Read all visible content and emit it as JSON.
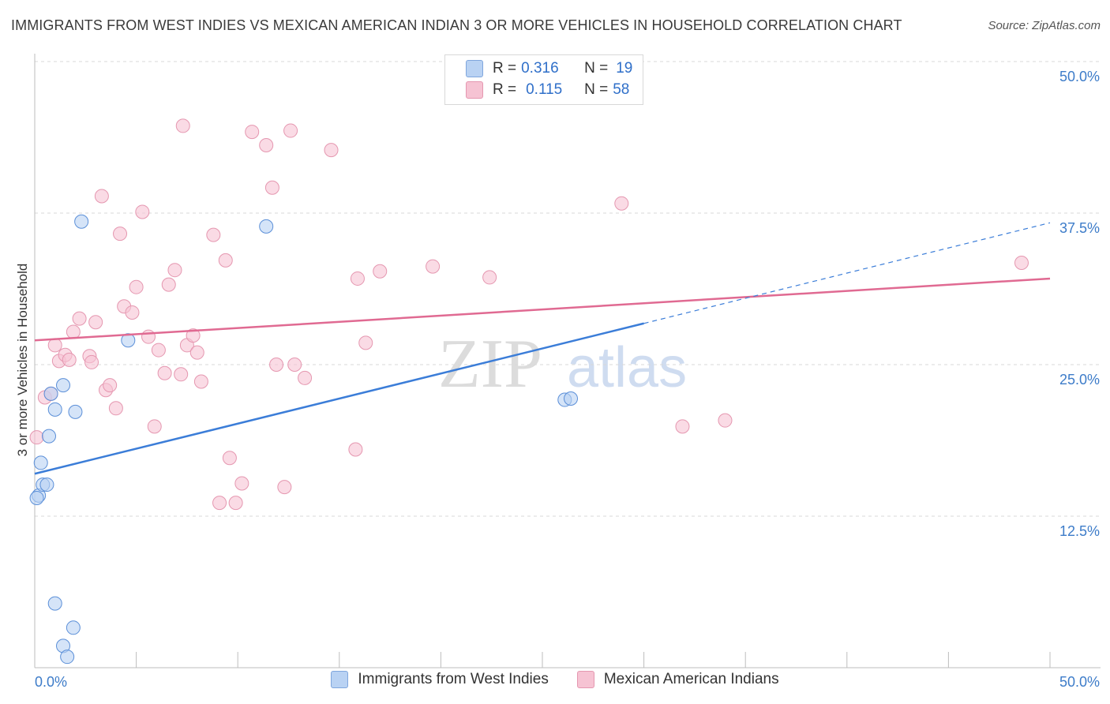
{
  "title": "IMMIGRANTS FROM WEST INDIES VS MEXICAN AMERICAN INDIAN 3 OR MORE VEHICLES IN HOUSEHOLD CORRELATION CHART",
  "source": "Source: ZipAtlas.com",
  "watermark": {
    "zip": "ZIP",
    "atlas": "atlas"
  },
  "colors": {
    "blue": "#3b7dd8",
    "blue_fill": "#b9d2f3",
    "pink": "#e06a92",
    "pink_fill": "#f6c3d3",
    "tick_label": "#3d7cc9"
  },
  "stats": [
    {
      "r_label": "R = ",
      "r_value": "0.316",
      "n_label": "N = ",
      "n_value": "19"
    },
    {
      "r_label": "R = ",
      "r_value": "0.115",
      "n_label": "N = ",
      "n_value": "58"
    }
  ],
  "legend": [
    "Immigrants from West Indies",
    "Mexican American Indians"
  ],
  "chart_data": {
    "type": "scatter",
    "xlabel": "",
    "ylabel": "3 or more Vehicles in Household",
    "xlim": [
      0,
      50
    ],
    "ylim": [
      0,
      50
    ],
    "x_tick_labels": [
      "0.0%",
      "50.0%"
    ],
    "y_ticks": [
      12.5,
      25.0,
      37.5,
      50.0
    ],
    "y_tick_labels": [
      "12.5%",
      "25.0%",
      "37.5%",
      "50.0%"
    ],
    "grid": true,
    "series": [
      {
        "name": "Immigrants from West Indies",
        "points": [
          [
            0.2,
            14.2
          ],
          [
            0.3,
            16.9
          ],
          [
            0.4,
            15.1
          ],
          [
            0.6,
            15.1
          ],
          [
            0.7,
            19.1
          ],
          [
            0.8,
            22.6
          ],
          [
            1.0,
            21.3
          ],
          [
            1.4,
            23.3
          ],
          [
            2.0,
            21.1
          ],
          [
            1.0,
            5.3
          ],
          [
            1.9,
            3.3
          ],
          [
            1.4,
            1.8
          ],
          [
            1.6,
            0.9
          ],
          [
            2.3,
            36.8
          ],
          [
            4.6,
            27.0
          ],
          [
            11.4,
            36.4
          ],
          [
            26.1,
            22.1
          ],
          [
            26.4,
            22.2
          ],
          [
            0.1,
            14.0
          ]
        ],
        "trend": {
          "x": [
            0,
            30
          ],
          "y": [
            16.0,
            28.4
          ]
        },
        "trend_extension": {
          "x": [
            30,
            50
          ],
          "y": [
            28.4,
            36.7
          ]
        }
      },
      {
        "name": "Mexican American Indians",
        "points": [
          [
            0.1,
            19.0
          ],
          [
            0.5,
            22.3
          ],
          [
            0.8,
            22.6
          ],
          [
            1.0,
            26.6
          ],
          [
            1.2,
            25.3
          ],
          [
            1.5,
            25.8
          ],
          [
            1.7,
            25.4
          ],
          [
            1.9,
            27.7
          ],
          [
            2.2,
            28.8
          ],
          [
            2.7,
            25.7
          ],
          [
            2.8,
            25.2
          ],
          [
            3.0,
            28.5
          ],
          [
            3.3,
            38.9
          ],
          [
            3.5,
            22.9
          ],
          [
            3.7,
            23.3
          ],
          [
            4.0,
            21.4
          ],
          [
            4.2,
            35.8
          ],
          [
            4.4,
            29.8
          ],
          [
            4.8,
            29.3
          ],
          [
            5.0,
            31.4
          ],
          [
            5.3,
            37.6
          ],
          [
            5.6,
            27.3
          ],
          [
            5.9,
            19.9
          ],
          [
            6.1,
            26.2
          ],
          [
            6.4,
            24.3
          ],
          [
            6.6,
            31.6
          ],
          [
            6.9,
            32.8
          ],
          [
            7.2,
            24.2
          ],
          [
            7.3,
            44.7
          ],
          [
            7.5,
            26.6
          ],
          [
            7.8,
            27.4
          ],
          [
            8.0,
            26.0
          ],
          [
            8.2,
            23.6
          ],
          [
            8.8,
            35.7
          ],
          [
            9.1,
            13.6
          ],
          [
            9.4,
            33.6
          ],
          [
            9.6,
            17.3
          ],
          [
            9.9,
            13.6
          ],
          [
            10.2,
            15.2
          ],
          [
            10.7,
            44.2
          ],
          [
            11.4,
            43.1
          ],
          [
            11.7,
            39.6
          ],
          [
            11.9,
            25.0
          ],
          [
            12.3,
            14.9
          ],
          [
            12.6,
            44.3
          ],
          [
            12.8,
            25.0
          ],
          [
            13.3,
            23.9
          ],
          [
            14.6,
            42.7
          ],
          [
            15.8,
            18.0
          ],
          [
            15.9,
            32.1
          ],
          [
            16.3,
            26.8
          ],
          [
            17.0,
            32.7
          ],
          [
            19.6,
            33.1
          ],
          [
            22.4,
            32.2
          ],
          [
            28.9,
            38.3
          ],
          [
            31.9,
            19.9
          ],
          [
            34.0,
            20.4
          ],
          [
            48.6,
            33.4
          ]
        ],
        "trend": {
          "x": [
            0,
            50
          ],
          "y": [
            27.0,
            32.1
          ]
        }
      }
    ]
  }
}
